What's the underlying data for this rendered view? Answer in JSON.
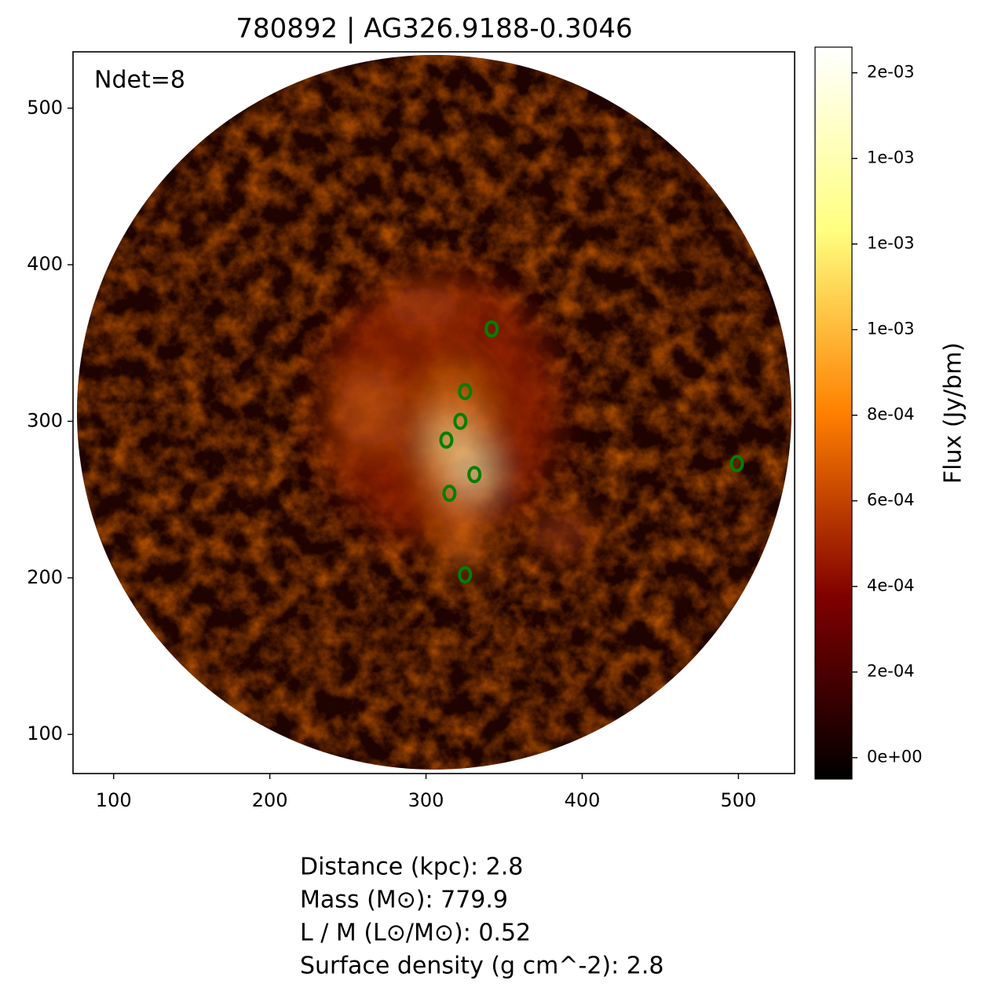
{
  "chart_data": {
    "type": "image",
    "title": "780892 | AG326.9188-0.3046",
    "annotation": "Ndet=8",
    "xlim": [
      74,
      536
    ],
    "ylim": [
      75,
      536
    ],
    "xticks": [
      100,
      200,
      300,
      400,
      500
    ],
    "yticks": [
      100,
      200,
      300,
      400,
      500
    ],
    "detections": {
      "color": "#008000",
      "x": [
        342,
        325,
        322,
        313,
        331,
        315,
        325,
        499
      ],
      "y": [
        359,
        319,
        300,
        288,
        266,
        254,
        202,
        273
      ]
    },
    "colorbar": {
      "label": "Flux (Jy/bm)",
      "lim": [
        -5e-05,
        0.00166
      ],
      "ticks": [
        {
          "value": 0,
          "label": "0e+00"
        },
        {
          "value": 0.0002,
          "label": "2e-04"
        },
        {
          "value": 0.0004,
          "label": "4e-04"
        },
        {
          "value": 0.0006,
          "label": "6e-04"
        },
        {
          "value": 0.0008,
          "label": "8e-04"
        },
        {
          "value": 0.001,
          "label": "1e-03"
        },
        {
          "value": 0.0012,
          "label": "1e-03"
        },
        {
          "value": 0.0014,
          "label": "1e-03"
        },
        {
          "value": 0.0016,
          "label": "2e-03"
        }
      ]
    },
    "footer": [
      "Distance (kpc): 2.8",
      "Mass (M⊙): 779.9",
      "L / M (L⊙/M⊙): 0.52",
      "Surface density (g cm^-2): 2.8"
    ]
  }
}
